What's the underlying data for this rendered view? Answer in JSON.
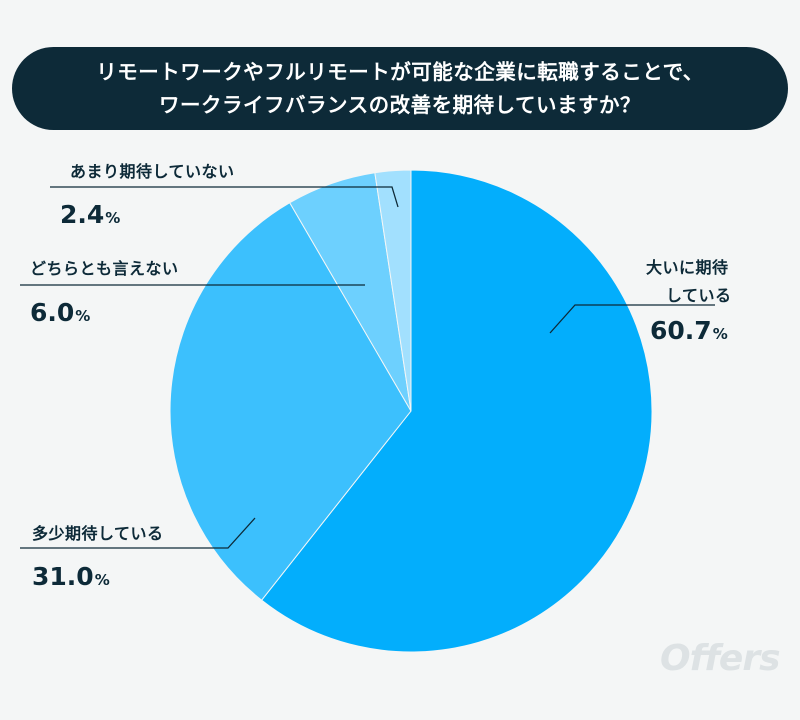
{
  "title": {
    "line1": "リモートワークやフルリモートが可能な企業に転職することで、",
    "line2": "ワークライフバランスの改善を期待していますか？"
  },
  "chart_data": {
    "type": "pie",
    "title": "リモートワークやフルリモートが可能な企業に転職することで、ワークライフバランスの改善を期待していますか？",
    "slices": [
      {
        "label": "大いに期待している",
        "label_line1": "大いに期待",
        "label_line2": "している",
        "value": 60.7,
        "value_text": "60.7",
        "color": "#03aefc"
      },
      {
        "label": "多少期待している",
        "value": 31.0,
        "value_text": "31.0",
        "color": "#3cc0fd"
      },
      {
        "label": "どちらとも言えない",
        "value": 6.0,
        "value_text": "6.0",
        "color": "#6dd0fe"
      },
      {
        "label": "あまり期待していない",
        "value": 2.4,
        "value_text": "2.4",
        "color": "#a2e0fe"
      }
    ],
    "unit": "%"
  },
  "watermark": "Offers"
}
